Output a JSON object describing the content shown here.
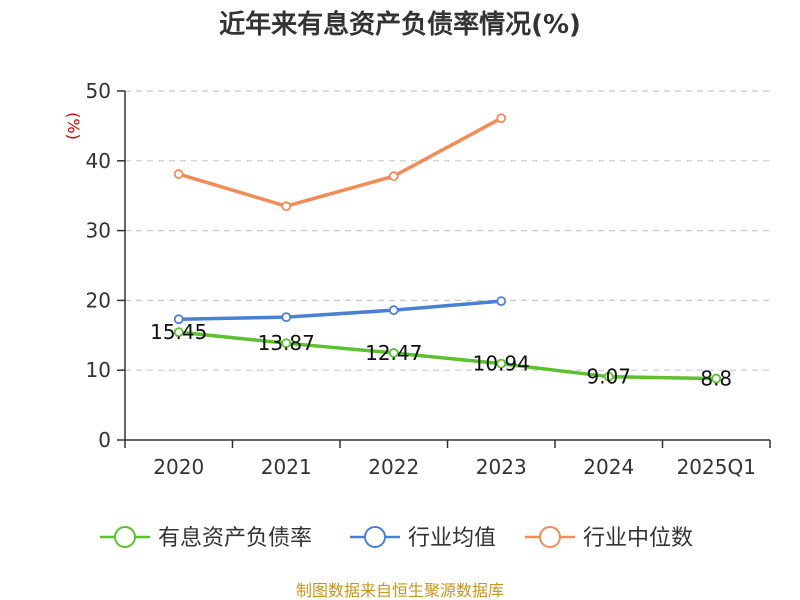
{
  "colors": {
    "series": [
      "#5cc12e",
      "#4a7fd6",
      "#f48a55"
    ],
    "axis": "#333333",
    "grid": "#c8c8c8",
    "unit": "#cc0000",
    "source": "#c8961e"
  },
  "chart_data": {
    "type": "line",
    "title": "近年来有息资产负债率情况(%)",
    "ylabel": "(%)",
    "categories": [
      "2020",
      "2021",
      "2022",
      "2023",
      "2024",
      "2025Q1"
    ],
    "ylim": [
      0,
      50
    ],
    "yticks": [
      0,
      10,
      20,
      30,
      40,
      50
    ],
    "grid": true,
    "legend_position": "bottom",
    "series": [
      {
        "name": "有息资产负债率",
        "values": [
          15.45,
          13.87,
          12.47,
          10.94,
          9.07,
          8.8
        ],
        "labels": [
          "15.45",
          "13.87",
          "12.47",
          "10.94",
          "9.07",
          "8.8"
        ]
      },
      {
        "name": "行业均值",
        "values": [
          17.3,
          17.6,
          18.6,
          19.9,
          null,
          null
        ]
      },
      {
        "name": "行业中位数",
        "values": [
          38.1,
          33.5,
          37.8,
          46.1,
          null,
          null
        ]
      }
    ]
  },
  "source_text": "制图数据来自恒生聚源数据库"
}
